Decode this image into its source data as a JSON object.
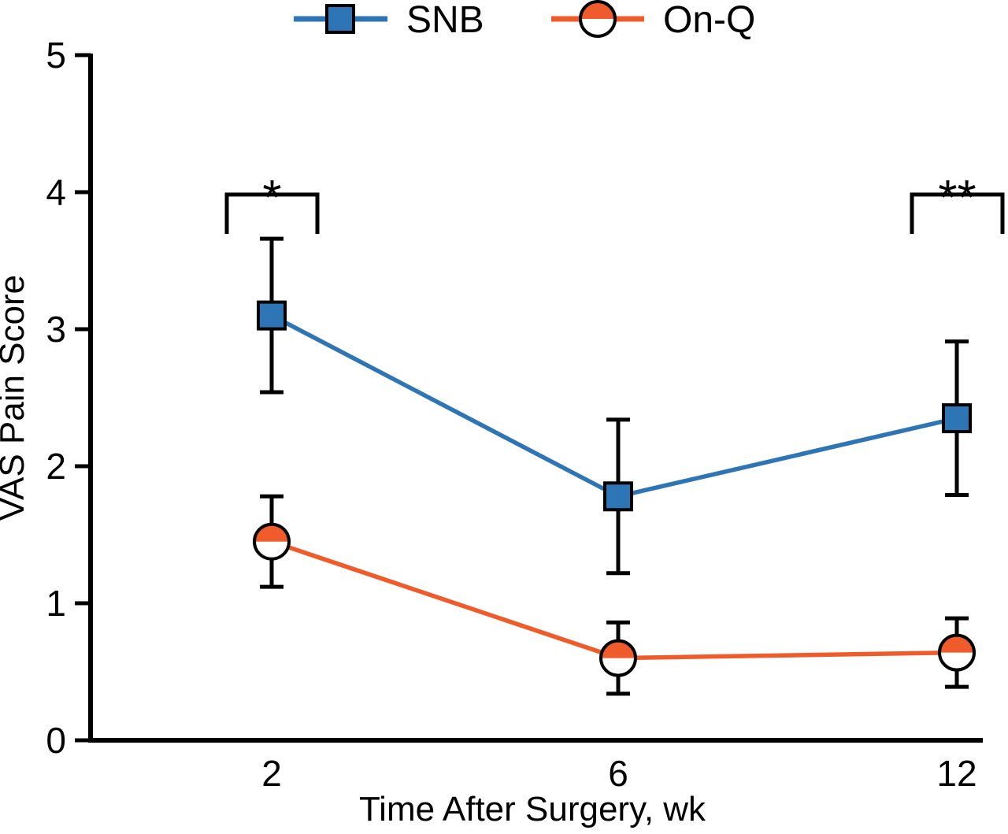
{
  "chart_data": {
    "type": "line",
    "title": "",
    "xlabel": "Time After Surgery, wk",
    "ylabel": "VAS Pain Score",
    "categories": [
      2,
      6,
      12
    ],
    "ylim": [
      0,
      5
    ],
    "yticks": [
      0,
      1,
      2,
      3,
      4,
      5
    ],
    "grid": false,
    "legend_position": "top",
    "series": [
      {
        "name": "SNB",
        "marker": "square",
        "color": "#2E75B6",
        "values": [
          3.1,
          1.78,
          2.35
        ],
        "errors": [
          0.56,
          0.56,
          0.56
        ]
      },
      {
        "name": "On-Q",
        "marker": "half-circle",
        "color": "#EF5B2B",
        "values": [
          1.45,
          0.6,
          0.64
        ],
        "errors": [
          0.33,
          0.26,
          0.25
        ]
      }
    ],
    "annotations": [
      {
        "label": "*",
        "category": 2
      },
      {
        "label": "**",
        "category": 12
      }
    ]
  },
  "colors": {
    "axis": "#000000",
    "background": "#ffffff"
  }
}
